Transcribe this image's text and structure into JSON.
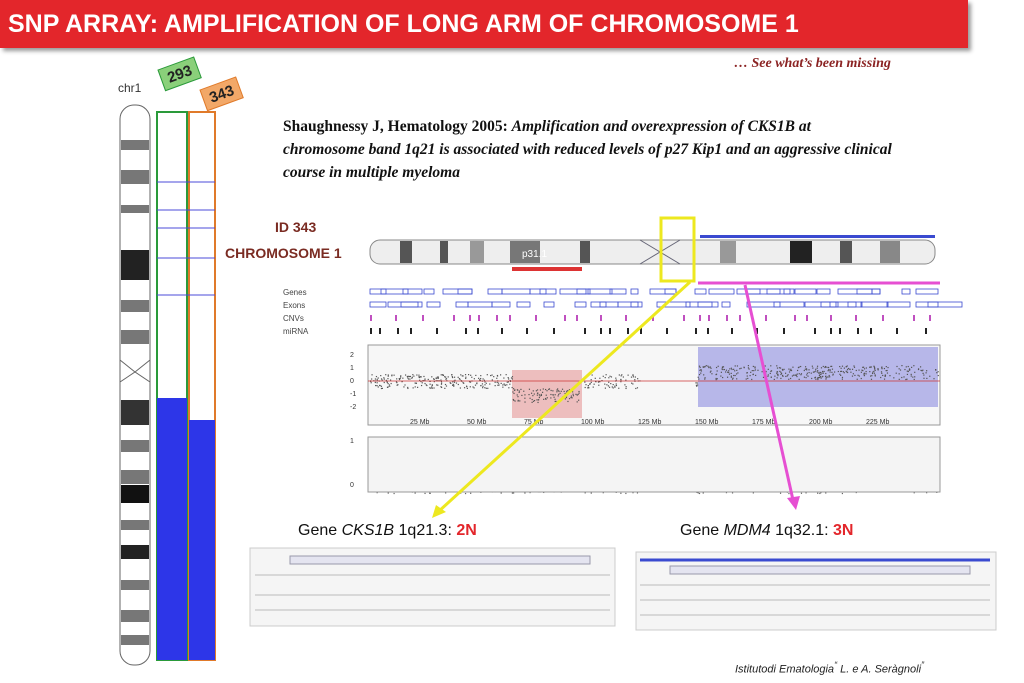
{
  "header": {
    "title": "SNP ARRAY: AMPLIFICATION OF LONG ARM OF CHROMOSOME 1",
    "subtitle": "… See what’s been missing"
  },
  "ideogram": {
    "label": "chr1",
    "tags": [
      "293",
      "343"
    ]
  },
  "citation": {
    "source": "Shaughnessy J, Hematology 2005:",
    "text": "Amplification and overexpression of CKS1B at chromosome band 1q21 is associated with reduced levels of p27 Kip1 and an aggressive clinical course in multiple myeloma"
  },
  "sample": {
    "id": "ID 343",
    "chromosome": "CHROMOSOME 1"
  },
  "browser": {
    "band": "p31.1",
    "tracks": [
      "Genes",
      "Exons",
      "CNVs",
      "miRNA"
    ],
    "y_labels": [
      "2",
      "1",
      "0",
      "-1",
      "-2"
    ],
    "x_labels": [
      "25 Mb",
      "50 Mb",
      "75 Mb",
      "100 Mb",
      "125 Mb",
      "150 Mb",
      "175 Mb",
      "200 Mb",
      "225 Mb"
    ],
    "baf_labels": [
      "1",
      "0"
    ]
  },
  "genes": [
    {
      "prefix": "Gene",
      "name": "CKS1B",
      "band": "1q21.3:",
      "copy": "2N"
    },
    {
      "prefix": "Gene",
      "name": "MDM4",
      "band": "1q32.1:",
      "copy": "3N"
    }
  ],
  "footer": {
    "institute": "Istitutodi Ematologia",
    "quote_open": "“",
    "names": " L. e A. Seràgnoli",
    "quote_close": "”"
  }
}
